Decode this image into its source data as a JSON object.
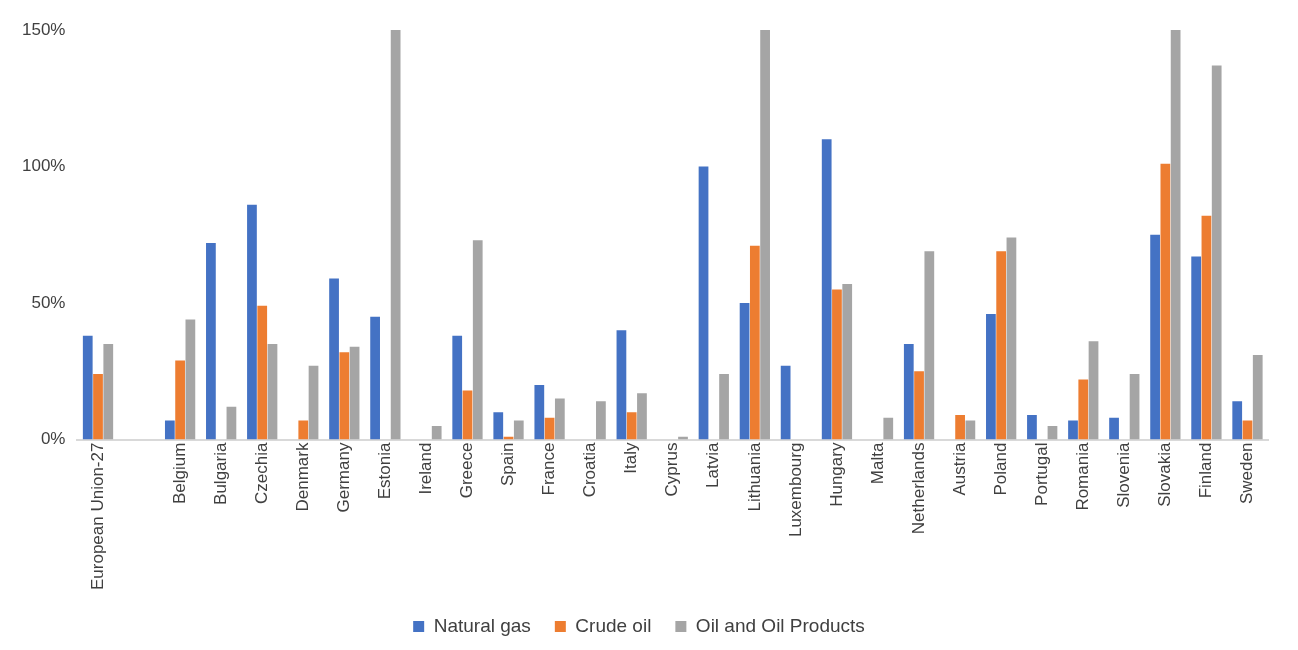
{
  "chart_data": {
    "type": "bar",
    "categories": [
      "European Union-27",
      null,
      "Belgium",
      "Bulgaria",
      "Czechia",
      "Denmark",
      "Germany",
      "Estonia",
      "Ireland",
      "Greece",
      "Spain",
      "France",
      "Croatia",
      "Italy",
      "Cyprus",
      "Latvia",
      "Lithuania",
      "Luxembourg",
      "Hungary",
      "Malta",
      "Netherlands",
      "Austria",
      "Poland",
      "Portugal",
      "Romania",
      "Slovenia",
      "Slovakia",
      "Finland",
      "Sweden"
    ],
    "series": [
      {
        "name": "Natural gas",
        "color": "#4472c4",
        "values": [
          38,
          null,
          7,
          72,
          86,
          null,
          59,
          45,
          null,
          38,
          10,
          20,
          null,
          40,
          null,
          100,
          50,
          27,
          110,
          null,
          35,
          null,
          46,
          9,
          7,
          8,
          75,
          67,
          14
        ]
      },
      {
        "name": "Crude oil",
        "color": "#ed7d31",
        "values": [
          24,
          null,
          29,
          null,
          49,
          7,
          32,
          null,
          null,
          18,
          1,
          8,
          null,
          10,
          null,
          null,
          71,
          null,
          55,
          null,
          25,
          9,
          69,
          null,
          22,
          null,
          101,
          82,
          7
        ]
      },
      {
        "name": "Oil and Oil Products",
        "color": "#a5a5a5",
        "values": [
          35,
          null,
          44,
          12,
          35,
          27,
          34,
          150,
          5,
          73,
          7,
          15,
          14,
          17,
          1,
          24,
          150,
          null,
          57,
          8,
          69,
          7,
          74,
          5,
          36,
          24,
          150,
          137,
          31
        ]
      }
    ],
    "ylim": [
      0,
      150
    ],
    "yticks": [
      {
        "value": 0,
        "label": "0%"
      },
      {
        "value": 50,
        "label": "50%"
      },
      {
        "value": 100,
        "label": "100%"
      },
      {
        "value": 150,
        "label": "150%"
      }
    ],
    "grid": false,
    "legend": "bottom"
  }
}
